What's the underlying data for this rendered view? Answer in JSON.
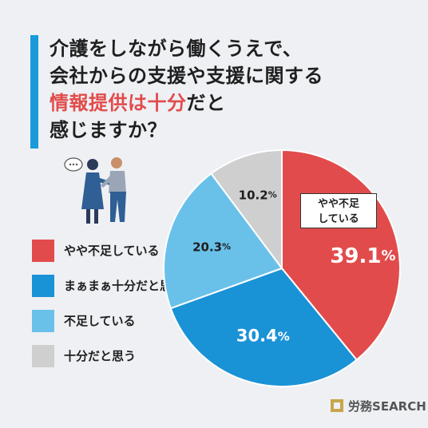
{
  "title": {
    "line1": "介護をしながら働くうえで、",
    "line2": "会社からの支援や支援に関する",
    "line3_highlight": "情報提供は十分",
    "line3_rest": "だと",
    "line4": "感じますか？"
  },
  "callout": {
    "line1": "やや不足",
    "line2": "している"
  },
  "logo": {
    "text_a": "労務",
    "text_b": "SEARCH"
  },
  "chart_data": {
    "type": "pie",
    "categories": [
      "やや不足している",
      "まぁまぁ十分だと思う",
      "不足している",
      "十分だと思う"
    ],
    "values": [
      39.1,
      30.4,
      20.3,
      10.2
    ],
    "value_labels": [
      {
        "num": "39.1",
        "unit": "%"
      },
      {
        "num": "30.4",
        "unit": "%"
      },
      {
        "num": "20.3",
        "unit": "%"
      },
      {
        "num": "10.2",
        "unit": "%"
      }
    ],
    "colors": [
      "#e24b4b",
      "#1a92d6",
      "#69c1ea",
      "#cfcfcf"
    ],
    "label_colors": [
      "#ffffff",
      "#ffffff",
      "#1f1f1f",
      "#1f1f1f"
    ],
    "start": "top",
    "direction": "clockwise"
  }
}
